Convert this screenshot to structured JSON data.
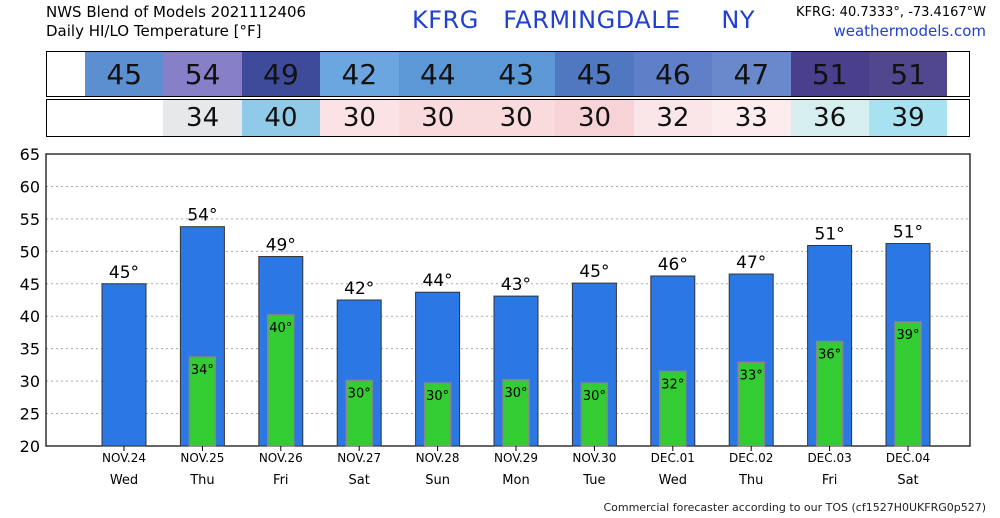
{
  "header": {
    "line1": "NWS Blend of Models 2021112406",
    "line2": "Daily HI/LO Temperature [°F]",
    "station": "KFRG   FARMINGDALE     NY",
    "coords": "KFRG: 40.7333°, -73.4167°W",
    "site": "weathermodels.com"
  },
  "footer": "Commercial forecaster according to our TOS (cf1527H0UKFRG0p527)",
  "hi_strip": {
    "values": [
      "45",
      "54",
      "49",
      "42",
      "44",
      "43",
      "45",
      "46",
      "47",
      "51",
      "51"
    ],
    "colors": [
      "#5b8fd0",
      "#8780c8",
      "#3e4a9a",
      "#6ba6e0",
      "#5c98d6",
      "#5c98d6",
      "#4f78c0",
      "#5f80c8",
      "#6a88cc",
      "#4a3f8c",
      "#51478e"
    ]
  },
  "lo_strip": {
    "values": [
      "",
      "34",
      "40",
      "30",
      "30",
      "30",
      "30",
      "32",
      "33",
      "36",
      "39"
    ],
    "colors": [
      "#ffffff",
      "#e6e8ea",
      "#8fcbe8",
      "#fbe3e5",
      "#f9dadd",
      "#f9dadd",
      "#f7d2d6",
      "#fae6e8",
      "#fcecee",
      "#d6eeee",
      "#a8e2f0"
    ]
  },
  "chart_data": {
    "type": "bar",
    "categories": [
      "NOV.24",
      "NOV.25",
      "NOV.26",
      "NOV.27",
      "NOV.28",
      "NOV.29",
      "NOV.30",
      "DEC.01",
      "DEC.02",
      "DEC.03",
      "DEC.04"
    ],
    "weekdays": [
      "Wed",
      "Thu",
      "Fri",
      "Sat",
      "Sun",
      "Mon",
      "Tue",
      "Wed",
      "Thu",
      "Fri",
      "Sat"
    ],
    "series": [
      {
        "values": [
          45.0,
          53.8,
          49.2,
          42.5,
          43.7,
          43.1,
          45.1,
          46.2,
          46.5,
          50.9,
          51.2
        ],
        "labels": [
          "45°",
          "54°",
          "49°",
          "42°",
          "44°",
          "43°",
          "45°",
          "46°",
          "47°",
          "51°",
          "51°"
        ],
        "color": "#2b78e4"
      },
      {
        "values": [
          null,
          33.7,
          40.2,
          30.1,
          29.7,
          30.2,
          29.7,
          31.5,
          32.9,
          36.1,
          39.1
        ],
        "labels": [
          "",
          "34°",
          "40°",
          "30°",
          "30°",
          "30°",
          "30°",
          "32°",
          "33°",
          "36°",
          "39°"
        ],
        "color": "#33cc33"
      }
    ],
    "ylim": [
      20,
      65
    ],
    "yticks": [
      20,
      25,
      30,
      35,
      40,
      45,
      50,
      55,
      60,
      65
    ],
    "grid": true
  }
}
